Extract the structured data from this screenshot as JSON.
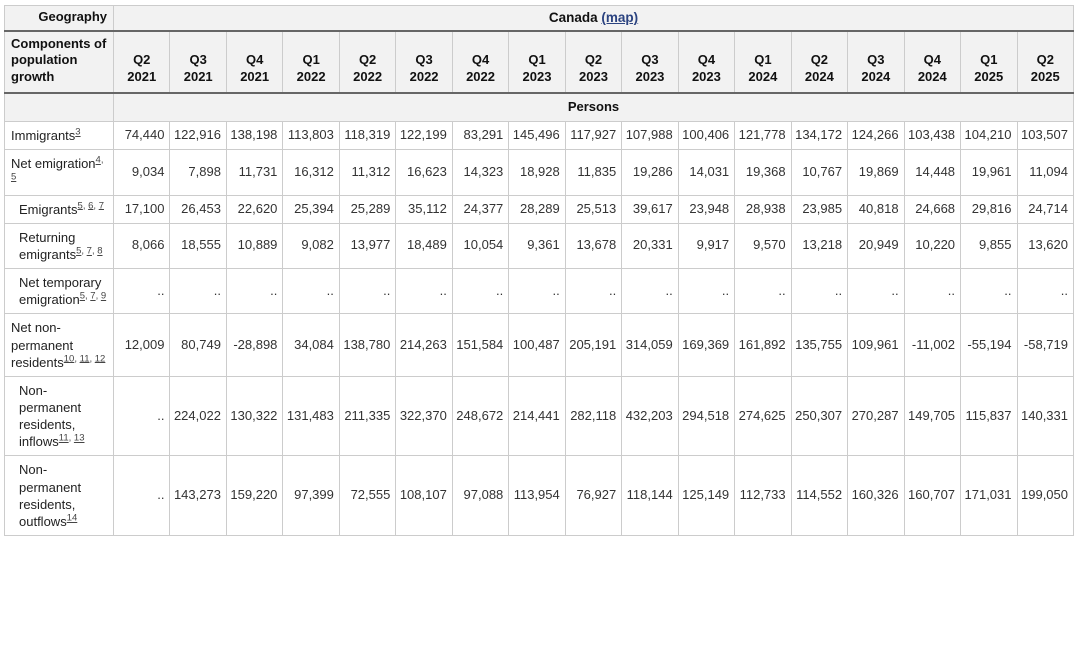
{
  "table": {
    "geography_label": "Geography",
    "region": {
      "name": "Canada",
      "map_link": "(map)"
    },
    "components_label": "Components of population growth",
    "unit_label": "Persons",
    "colors": {
      "header_bg": "#f2f2f2",
      "link_blue": "#2b4380",
      "border_light": "#cccccc",
      "border_dark": "#666666"
    },
    "quarters": [
      {
        "quarter": "Q2",
        "year": "2021"
      },
      {
        "quarter": "Q3",
        "year": "2021"
      },
      {
        "quarter": "Q4",
        "year": "2021"
      },
      {
        "quarter": "Q1",
        "year": "2022"
      },
      {
        "quarter": "Q2",
        "year": "2022"
      },
      {
        "quarter": "Q3",
        "year": "2022"
      },
      {
        "quarter": "Q4",
        "year": "2022"
      },
      {
        "quarter": "Q1",
        "year": "2023"
      },
      {
        "quarter": "Q2",
        "year": "2023"
      },
      {
        "quarter": "Q3",
        "year": "2023"
      },
      {
        "quarter": "Q4",
        "year": "2023"
      },
      {
        "quarter": "Q1",
        "year": "2024"
      },
      {
        "quarter": "Q2",
        "year": "2024"
      },
      {
        "quarter": "Q3",
        "year": "2024"
      },
      {
        "quarter": "Q4",
        "year": "2024"
      },
      {
        "quarter": "Q1",
        "year": "2025"
      },
      {
        "quarter": "Q2",
        "year": "2025"
      }
    ],
    "rows": [
      {
        "label": "Immigrants",
        "footnotes": [
          "3"
        ],
        "indent": false,
        "values": [
          "74,440",
          "122,916",
          "138,198",
          "113,803",
          "118,319",
          "122,199",
          "83,291",
          "145,496",
          "117,927",
          "107,988",
          "100,406",
          "121,778",
          "134,172",
          "124,266",
          "103,438",
          "104,210",
          "103,507"
        ]
      },
      {
        "label": "Net emigration",
        "footnotes": [
          "4",
          "5"
        ],
        "indent": false,
        "values": [
          "9,034",
          "7,898",
          "11,731",
          "16,312",
          "11,312",
          "16,623",
          "14,323",
          "18,928",
          "11,835",
          "19,286",
          "14,031",
          "19,368",
          "10,767",
          "19,869",
          "14,448",
          "19,961",
          "11,094"
        ]
      },
      {
        "label": "Emigrants",
        "footnotes": [
          "5",
          "6",
          "7"
        ],
        "indent": true,
        "values": [
          "17,100",
          "26,453",
          "22,620",
          "25,394",
          "25,289",
          "35,112",
          "24,377",
          "28,289",
          "25,513",
          "39,617",
          "23,948",
          "28,938",
          "23,985",
          "40,818",
          "24,668",
          "29,816",
          "24,714"
        ]
      },
      {
        "label": "Returning emigrants",
        "footnotes": [
          "5",
          "7",
          "8"
        ],
        "indent": true,
        "values": [
          "8,066",
          "18,555",
          "10,889",
          "9,082",
          "13,977",
          "18,489",
          "10,054",
          "9,361",
          "13,678",
          "20,331",
          "9,917",
          "9,570",
          "13,218",
          "20,949",
          "10,220",
          "9,855",
          "13,620"
        ]
      },
      {
        "label": "Net temporary emigration",
        "footnotes": [
          "5",
          "7",
          "9"
        ],
        "indent": true,
        "values": [
          "..",
          "..",
          "..",
          "..",
          "..",
          "..",
          "..",
          "..",
          "..",
          "..",
          "..",
          "..",
          "..",
          "..",
          "..",
          "..",
          ".."
        ]
      },
      {
        "label": "Net non-permanent residents",
        "footnotes": [
          "10",
          "11",
          "12"
        ],
        "indent": false,
        "values": [
          "12,009",
          "80,749",
          "-28,898",
          "34,084",
          "138,780",
          "214,263",
          "151,584",
          "100,487",
          "205,191",
          "314,059",
          "169,369",
          "161,892",
          "135,755",
          "109,961",
          "-11,002",
          "-55,194",
          "-58,719"
        ]
      },
      {
        "label": "Non-permanent residents, inflows",
        "footnotes": [
          "11",
          "13"
        ],
        "indent": true,
        "values": [
          "..",
          "224,022",
          "130,322",
          "131,483",
          "211,335",
          "322,370",
          "248,672",
          "214,441",
          "282,118",
          "432,203",
          "294,518",
          "274,625",
          "250,307",
          "270,287",
          "149,705",
          "115,837",
          "140,331"
        ]
      },
      {
        "label": "Non-permanent residents, outflows",
        "footnotes": [
          "14"
        ],
        "indent": true,
        "values": [
          "..",
          "143,273",
          "159,220",
          "97,399",
          "72,555",
          "108,107",
          "97,088",
          "113,954",
          "76,927",
          "118,144",
          "125,149",
          "112,733",
          "114,552",
          "160,326",
          "160,707",
          "171,031",
          "199,050"
        ]
      }
    ]
  }
}
